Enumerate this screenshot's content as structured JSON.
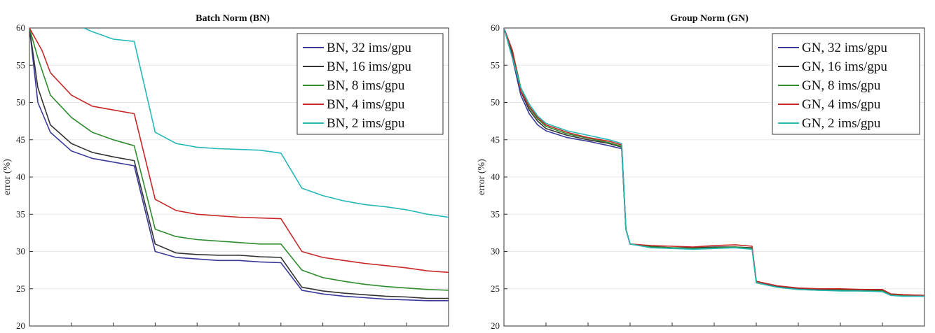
{
  "chart_data": [
    {
      "type": "line",
      "title": "Batch Norm (BN)",
      "xlabel": "",
      "ylabel": "error (%)",
      "ylim": [
        20,
        60
      ],
      "xlim": [
        0,
        100
      ],
      "yticks": [
        20,
        25,
        30,
        35,
        40,
        45,
        50,
        55,
        60
      ],
      "grid": true,
      "legend_position": "top-right",
      "series": [
        {
          "name": "BN, 32 ims/gpu",
          "color": "#3a3a9a",
          "x": [
            0,
            2,
            5,
            10,
            15,
            20,
            25,
            30,
            35,
            40,
            45,
            50,
            55,
            60,
            65,
            70,
            75,
            80,
            85,
            90,
            95,
            100
          ],
          "y": [
            60,
            50,
            46,
            43.5,
            42.5,
            42,
            41.5,
            30,
            29.2,
            29,
            28.8,
            28.8,
            28.6,
            28.5,
            24.8,
            24.3,
            24,
            23.8,
            23.6,
            23.5,
            23.4,
            23.4
          ]
        },
        {
          "name": "BN, 16 ims/gpu",
          "color": "#333333",
          "x": [
            0,
            2,
            5,
            10,
            15,
            20,
            25,
            30,
            35,
            40,
            45,
            50,
            55,
            60,
            65,
            70,
            75,
            80,
            85,
            90,
            95,
            100
          ],
          "y": [
            60,
            52,
            47,
            44.5,
            43.3,
            42.7,
            42.2,
            31,
            29.8,
            29.6,
            29.5,
            29.5,
            29.3,
            29.2,
            25.2,
            24.7,
            24.4,
            24.2,
            24,
            23.9,
            23.7,
            23.7
          ]
        },
        {
          "name": "BN, 8 ims/gpu",
          "color": "#2e8b2e",
          "x": [
            0,
            2,
            5,
            10,
            15,
            20,
            25,
            30,
            35,
            40,
            45,
            50,
            55,
            60,
            65,
            70,
            75,
            80,
            85,
            90,
            95,
            100
          ],
          "y": [
            60,
            56,
            51,
            48,
            46,
            45,
            44.2,
            33,
            32,
            31.6,
            31.4,
            31.2,
            31,
            31,
            27.5,
            26.5,
            26,
            25.6,
            25.3,
            25.1,
            24.9,
            24.8
          ]
        },
        {
          "name": "BN, 4 ims/gpu",
          "color": "#c62828",
          "x": [
            0,
            3,
            5,
            10,
            15,
            20,
            25,
            30,
            35,
            40,
            45,
            50,
            55,
            60,
            65,
            70,
            75,
            80,
            85,
            90,
            95,
            100
          ],
          "y": [
            60,
            57,
            54,
            51,
            49.5,
            49,
            48.5,
            37,
            35.5,
            35,
            34.8,
            34.6,
            34.5,
            34.4,
            30,
            29.2,
            28.8,
            28.4,
            28.1,
            27.8,
            27.4,
            27.2
          ]
        },
        {
          "name": "BN, 2 ims/gpu",
          "color": "#26b7b7",
          "x": [
            13,
            15,
            20,
            25,
            30,
            35,
            40,
            45,
            50,
            55,
            60,
            65,
            70,
            75,
            80,
            85,
            90,
            95,
            100
          ],
          "y": [
            60,
            59.5,
            58.5,
            58.2,
            46,
            44.5,
            44,
            43.8,
            43.7,
            43.6,
            43.2,
            38.5,
            37.5,
            36.8,
            36.3,
            36,
            35.6,
            35,
            34.6
          ]
        }
      ]
    },
    {
      "type": "line",
      "title": "Group Norm (GN)",
      "xlabel": "",
      "ylabel": "error (%)",
      "ylim": [
        20,
        60
      ],
      "xlim": [
        0,
        100
      ],
      "yticks": [
        20,
        25,
        30,
        35,
        40,
        45,
        50,
        55,
        60
      ],
      "grid": true,
      "legend_position": "top-right",
      "series": [
        {
          "name": "GN, 32 ims/gpu",
          "color": "#3a3a9a",
          "x": [
            0,
            2,
            4,
            6,
            8,
            10,
            15,
            20,
            25,
            28,
            29,
            30,
            35,
            40,
            45,
            50,
            55,
            59,
            60,
            65,
            70,
            75,
            80,
            85,
            90,
            92,
            95,
            100
          ],
          "y": [
            60,
            56,
            51,
            48.5,
            47,
            46.2,
            45.3,
            44.8,
            44.2,
            43.8,
            33,
            31,
            30.6,
            30.4,
            30.4,
            30.5,
            30.5,
            30.4,
            26,
            25.3,
            25,
            24.9,
            24.8,
            24.8,
            24.7,
            24.2,
            24.1,
            24
          ]
        },
        {
          "name": "GN, 16 ims/gpu",
          "color": "#333333",
          "x": [
            0,
            2,
            4,
            6,
            8,
            10,
            15,
            20,
            25,
            28,
            29,
            30,
            35,
            40,
            45,
            50,
            55,
            59,
            60,
            65,
            70,
            75,
            80,
            85,
            90,
            92,
            95,
            100
          ],
          "y": [
            60,
            56.5,
            51.5,
            49,
            47.5,
            46.5,
            45.6,
            45,
            44.5,
            44,
            33,
            31,
            30.7,
            30.5,
            30.5,
            30.6,
            30.6,
            30.5,
            26,
            25.3,
            25,
            24.9,
            24.9,
            24.8,
            24.8,
            24.3,
            24.2,
            24.1
          ]
        },
        {
          "name": "GN, 8 ims/gpu",
          "color": "#2e8b2e",
          "x": [
            0,
            2,
            4,
            6,
            8,
            10,
            15,
            20,
            25,
            28,
            29,
            30,
            35,
            40,
            45,
            50,
            55,
            59,
            60,
            65,
            70,
            75,
            80,
            85,
            90,
            92,
            95,
            100
          ],
          "y": [
            60,
            57,
            52,
            49.3,
            47.8,
            46.8,
            45.8,
            45.2,
            44.6,
            44.1,
            33,
            31,
            30.6,
            30.5,
            30.4,
            30.5,
            30.6,
            30.4,
            25.8,
            25.2,
            24.9,
            24.8,
            24.8,
            24.7,
            24.7,
            24.2,
            24.1,
            24
          ]
        },
        {
          "name": "GN, 4 ims/gpu",
          "color": "#c62828",
          "x": [
            0,
            2,
            4,
            6,
            8,
            10,
            15,
            20,
            25,
            28,
            29,
            30,
            35,
            40,
            45,
            50,
            55,
            59,
            60,
            65,
            70,
            75,
            80,
            85,
            90,
            92,
            95,
            100
          ],
          "y": [
            60,
            57,
            51.5,
            49.5,
            48,
            47,
            46,
            45.3,
            44.8,
            44.3,
            33,
            31,
            30.8,
            30.7,
            30.6,
            30.8,
            30.9,
            30.7,
            26,
            25.4,
            25.1,
            25,
            25,
            24.9,
            24.9,
            24.3,
            24.2,
            24.1
          ]
        },
        {
          "name": "GN, 2 ims/gpu",
          "color": "#26b7b7",
          "x": [
            0,
            2,
            4,
            6,
            8,
            10,
            15,
            20,
            25,
            28,
            29,
            30,
            35,
            40,
            45,
            50,
            55,
            59,
            60,
            65,
            70,
            75,
            80,
            85,
            90,
            92,
            95,
            100
          ],
          "y": [
            60,
            56,
            52,
            49.8,
            48.2,
            47.2,
            46.2,
            45.6,
            45,
            44.5,
            33,
            31,
            30.5,
            30.4,
            30.3,
            30.4,
            30.5,
            30.3,
            25.8,
            25.2,
            24.9,
            24.8,
            24.7,
            24.7,
            24.6,
            24.1,
            24,
            24
          ]
        }
      ]
    }
  ]
}
